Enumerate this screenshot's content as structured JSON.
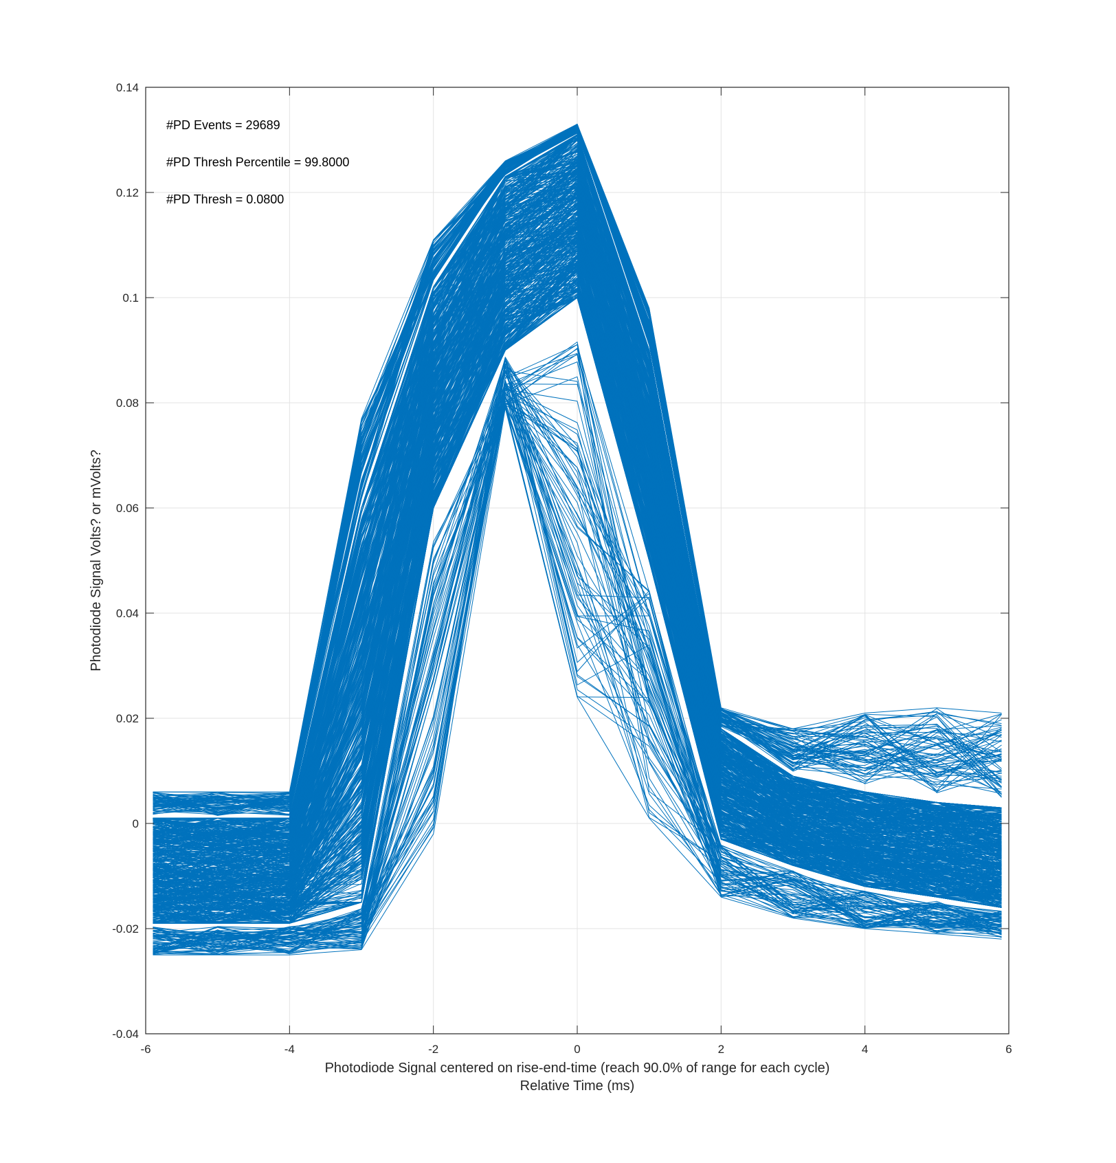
{
  "chart_data": {
    "type": "line",
    "title": "",
    "xlabel_lines": [
      "Photodiode Signal centered on rise-end-time (reach 90.0% of range for each cycle)",
      "Relative Time (ms)"
    ],
    "ylabel": "Photodiode Signal Volts? or mVolts?",
    "xlim": [
      -6,
      6
    ],
    "ylim": [
      -0.04,
      0.14
    ],
    "x_ticks": [
      -6,
      -4,
      -2,
      0,
      2,
      4,
      6
    ],
    "x_tick_labels": [
      "-6",
      "-4",
      "-2",
      "0",
      "2",
      "4",
      "6"
    ],
    "y_ticks": [
      -0.04,
      -0.02,
      0,
      0.02,
      0.04,
      0.06,
      0.08,
      0.1,
      0.12,
      0.14
    ],
    "y_tick_labels": [
      "-0.04",
      "-0.02",
      "0",
      "0.02",
      "0.04",
      "0.06",
      "0.08",
      "0.1",
      "0.12",
      "0.14"
    ],
    "grid": true,
    "series_color": "#0072BD",
    "annotations": [
      "#PD Events = 29689",
      "#PD Thresh Percentile = 99.8000",
      "#PD Thresh = 0.0800"
    ],
    "x": [
      -5.9,
      -5,
      -4,
      -3,
      -2,
      -1,
      0,
      1,
      2,
      3,
      4,
      5,
      5.9
    ],
    "envelope": {
      "upper": [
        0.006,
        0.006,
        0.006,
        0.077,
        0.111,
        0.126,
        0.133,
        0.098,
        0.022,
        0.018,
        0.021,
        0.022,
        0.021
      ],
      "core_upper": [
        0.001,
        0.001,
        0.001,
        0.06,
        0.102,
        0.123,
        0.131,
        0.09,
        0.018,
        0.009,
        0.006,
        0.004,
        0.003
      ],
      "core_lower": [
        -0.019,
        -0.019,
        -0.019,
        -0.015,
        0.06,
        0.09,
        0.1,
        0.05,
        -0.003,
        -0.008,
        -0.012,
        -0.014,
        -0.016
      ],
      "lower": [
        -0.025,
        -0.025,
        -0.025,
        -0.024,
        -0.002,
        0.079,
        0.024,
        0.001,
        -0.014,
        -0.018,
        -0.02,
        -0.021,
        -0.022
      ]
    }
  }
}
